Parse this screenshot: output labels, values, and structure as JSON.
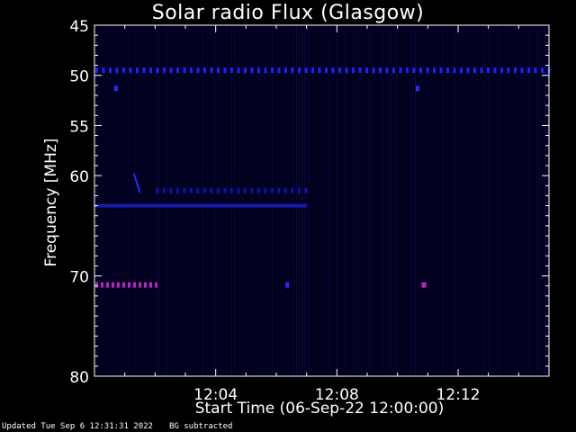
{
  "chart_data": {
    "type": "heatmap",
    "title": "Solar radio Flux (Glasgow)",
    "xlabel": "Start Time (06-Sep-22 12:00:00)",
    "ylabel": "Frequency [MHz]",
    "x_unit": "minutes after 12:00:00",
    "xlim": [
      0,
      15
    ],
    "ylim": [
      45,
      80
    ],
    "y_inverted": true,
    "x_ticks": [
      {
        "value": 4,
        "label": "12:04"
      },
      {
        "value": 8,
        "label": "12:08"
      },
      {
        "value": 12,
        "label": "12:12"
      }
    ],
    "y_ticks": [
      {
        "value": 45,
        "label": "45"
      },
      {
        "value": 50,
        "label": "50"
      },
      {
        "value": 55,
        "label": "55"
      },
      {
        "value": 60,
        "label": "60"
      },
      {
        "value": 70,
        "label": "70"
      },
      {
        "value": 80,
        "label": "80"
      }
    ],
    "background_note": "BG subtracted",
    "features": [
      {
        "name": "periodic interference",
        "freq_mhz": 49.5,
        "x_range": [
          0,
          15
        ],
        "color": "#2020ff",
        "pattern": "dotted"
      },
      {
        "name": "continuous band",
        "freq_mhz": 63.0,
        "x_range": [
          0,
          7.0
        ],
        "color": "#1a1aaa",
        "pattern": "solid"
      },
      {
        "name": "weak band",
        "freq_mhz": 61.5,
        "x_range": [
          2.0,
          7.0
        ],
        "color": "#1010aa",
        "pattern": "dotted"
      },
      {
        "name": "drift",
        "freq_from": 59.8,
        "freq_to": 61.7,
        "x_range": [
          1.3,
          1.5
        ],
        "color": "#2a2aff",
        "pattern": "solid"
      },
      {
        "name": "strong emission",
        "freq_mhz": 70.9,
        "x_range": [
          0,
          2.1
        ],
        "color": "#c020c0",
        "pattern": "dotted"
      },
      {
        "name": "isolated spot",
        "freq_mhz": 70.9,
        "x_range": [
          6.3,
          6.4
        ],
        "color": "#2a2aff",
        "pattern": "solid"
      },
      {
        "name": "isolated spot",
        "freq_mhz": 70.9,
        "x_range": [
          10.8,
          10.95
        ],
        "color": "#c020c0",
        "pattern": "solid"
      },
      {
        "name": "isolated spot",
        "freq_mhz": 51.3,
        "x_range": [
          0.65,
          0.75
        ],
        "color": "#2a2aff",
        "pattern": "solid"
      },
      {
        "name": "isolated spot",
        "freq_mhz": 51.3,
        "x_range": [
          10.6,
          10.7
        ],
        "color": "#2a2aff",
        "pattern": "solid"
      }
    ]
  },
  "footer": {
    "updated": "Updated Tue Sep  6 12:31:31 2022",
    "note": "BG subtracted"
  },
  "colors": {
    "background": "#000000",
    "axes": "#ffffff",
    "plot_background": "#00001a"
  }
}
